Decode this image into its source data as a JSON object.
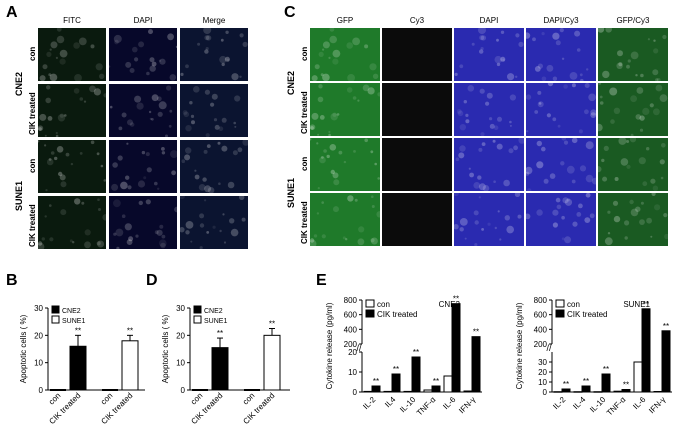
{
  "panels": {
    "a": "A",
    "b": "B",
    "c": "C",
    "d": "D",
    "e": "E"
  },
  "panel_a": {
    "columns": [
      "FITC",
      "DAPI",
      "Merge"
    ],
    "groups": [
      "CNE2",
      "SUNE1"
    ],
    "rows": [
      "con",
      "CIK treated",
      "con",
      "CIK treated"
    ],
    "colors": {
      "fitc": "#0a1a0e",
      "dapi": "#07082a",
      "merge": "#0b1430"
    }
  },
  "panel_c": {
    "columns": [
      "GFP",
      "Cy3",
      "DAPI",
      "DAPI/Cy3",
      "GFP/Cy3"
    ],
    "groups": [
      "CNE2",
      "SUNE1"
    ],
    "rows": [
      "con",
      "CIK treated",
      "con",
      "CIK treated"
    ],
    "colors": {
      "gfp": "#1f7a2a",
      "cy3": "#0b0b0b",
      "dapi": "#2a2ab0",
      "dapicy3": "#2a2ab0",
      "gfpcy3": "#1a5a22"
    }
  },
  "chart_data": [
    {
      "panel": "B",
      "type": "bar",
      "ylabel": "Apoptotic cells ( %)",
      "ylim": [
        0,
        30
      ],
      "yticks": [
        0,
        10,
        20,
        30
      ],
      "categories": [
        "con",
        "CIK treated",
        "con",
        "CIK treated"
      ],
      "series": [
        {
          "name": "CNE2",
          "color": "#000000",
          "values": [
            0,
            16,
            null,
            null
          ],
          "err": [
            0,
            4,
            null,
            null
          ]
        },
        {
          "name": "SUNE1",
          "color": "#ffffff",
          "values": [
            null,
            null,
            0,
            18
          ],
          "err": [
            null,
            null,
            0,
            2
          ]
        }
      ],
      "annotations": [
        "**",
        "**"
      ]
    },
    {
      "panel": "D",
      "type": "bar",
      "ylabel": "Apoptotic cells ( %)",
      "ylim": [
        0,
        30
      ],
      "yticks": [
        0,
        10,
        20,
        30
      ],
      "categories": [
        "con",
        "CIK treated",
        "con",
        "CIK treated"
      ],
      "series": [
        {
          "name": "CNE2",
          "color": "#000000",
          "values": [
            0,
            15.5,
            null,
            null
          ],
          "err": [
            0,
            3.5,
            null,
            null
          ]
        },
        {
          "name": "SUNE1",
          "color": "#ffffff",
          "values": [
            null,
            null,
            0,
            20
          ],
          "err": [
            null,
            null,
            0,
            2.5
          ]
        }
      ],
      "annotations": [
        "**",
        "**"
      ]
    },
    {
      "panel": "E",
      "cell_line": "CNE2",
      "type": "bar",
      "ylabel": "Cytokine release (pg/ml)",
      "ylim_lower": [
        0,
        20
      ],
      "ylim_upper": [
        200,
        800
      ],
      "yticks_lower": [
        0,
        10,
        20
      ],
      "yticks_upper": [
        200,
        400,
        600,
        800
      ],
      "categories": [
        "IL-2",
        "IL4",
        "IL-10",
        "TNF-α",
        "IL-6",
        "IFN-γ"
      ],
      "series": [
        {
          "name": "con",
          "color": "#ffffff",
          "values": [
            0.3,
            0.3,
            0.3,
            1,
            8,
            0.5
          ]
        },
        {
          "name": "CIK treated",
          "color": "#000000",
          "values": [
            3,
            9,
            17.5,
            3,
            750,
            300
          ]
        }
      ],
      "annotations": [
        "**",
        "**",
        "**",
        "**",
        "**",
        "**"
      ]
    },
    {
      "panel": "E",
      "cell_line": "SUNE1",
      "type": "bar",
      "ylabel": "Cytokine release (pg/ml)",
      "ylim_lower": [
        0,
        40
      ],
      "ylim_upper": [
        200,
        800
      ],
      "yticks_lower": [
        0,
        10,
        20,
        30
      ],
      "yticks_upper": [
        200,
        400,
        600,
        800
      ],
      "categories": [
        "IL-2",
        "IL-4",
        "IL-10",
        "TNF-α",
        "IL-6",
        "IFN-γ"
      ],
      "series": [
        {
          "name": "con",
          "color": "#ffffff",
          "values": [
            0.3,
            0.3,
            0.3,
            0.8,
            30,
            0.5
          ]
        },
        {
          "name": "CIK treated",
          "color": "#000000",
          "values": [
            3,
            6,
            18,
            2.5,
            680,
            380
          ]
        }
      ],
      "annotations": [
        "**",
        "**",
        "**",
        "**",
        "**",
        "**"
      ]
    }
  ]
}
